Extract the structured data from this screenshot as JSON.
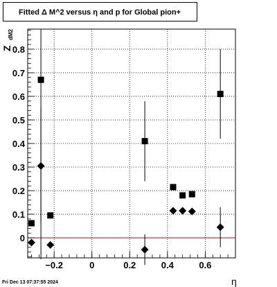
{
  "chart_data": {
    "type": "scatter",
    "title": "Fitted Δ M^2 versus η and p for Global pion+",
    "xlabel": "η",
    "ylabel": "Z",
    "ylabel_sub": "dM2",
    "footer": "Fri Dec 13 07:37:55 2024",
    "xlim": [
      -0.34,
      0.76
    ],
    "ylim": [
      -0.085,
      0.885
    ],
    "grid": true,
    "x_ticks": [
      -0.2,
      0,
      0.2,
      0.4,
      0.6
    ],
    "x_tick_labels": [
      "−0.2",
      "0",
      "0.2",
      "0.4",
      "0.6"
    ],
    "y_ticks": [
      0,
      0.1,
      0.2,
      0.3,
      0.4,
      0.5,
      0.6,
      0.7,
      0.8
    ],
    "y_tick_labels": [
      "0",
      "0.1",
      "0.2",
      "0.3",
      "0.4",
      "0.5",
      "0.6",
      "0.7",
      "0.8"
    ],
    "reference_line": {
      "y": 0,
      "color": "#cc0000"
    },
    "series": [
      {
        "marker": "square",
        "color": "#000000",
        "points": [
          {
            "x": -0.32,
            "y": 0.062,
            "err": 0
          },
          {
            "x": -0.27,
            "y": 0.67,
            "err": 0
          },
          {
            "x": -0.22,
            "y": 0.095,
            "err": 0
          },
          {
            "x": 0.28,
            "y": 0.41,
            "err": 0.17
          },
          {
            "x": 0.43,
            "y": 0.215,
            "err": 0
          },
          {
            "x": 0.48,
            "y": 0.18,
            "err": 0
          },
          {
            "x": 0.53,
            "y": 0.185,
            "err": 0
          },
          {
            "x": 0.68,
            "y": 0.61,
            "err": 0.19
          }
        ]
      },
      {
        "marker": "diamond",
        "color": "#000000",
        "points": [
          {
            "x": -0.32,
            "y": -0.02,
            "err": 0
          },
          {
            "x": -0.27,
            "y": 0.305,
            "err": 0.245
          },
          {
            "x": -0.22,
            "y": -0.03,
            "err": 0
          },
          {
            "x": 0.28,
            "y": -0.05,
            "err": 0.065
          },
          {
            "x": 0.43,
            "y": 0.115,
            "err": 0
          },
          {
            "x": 0.48,
            "y": 0.115,
            "err": 0
          },
          {
            "x": 0.53,
            "y": 0.112,
            "err": 0
          },
          {
            "x": 0.68,
            "y": 0.045,
            "err": 0.085
          }
        ]
      }
    ],
    "shared_error_bar": {
      "x": -0.27,
      "y_low": -0.09,
      "y_high": 0.885
    }
  }
}
